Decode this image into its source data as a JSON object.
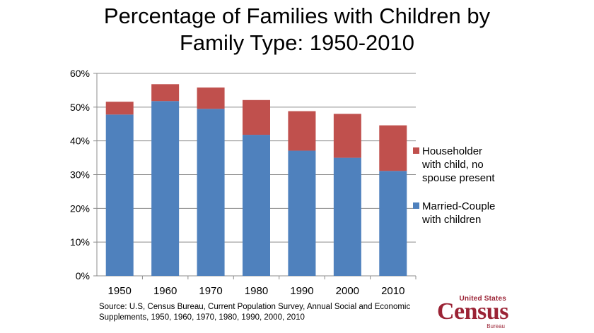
{
  "title_line1": "Percentage of Families with Children by",
  "title_line2": "Family Type: 1950-2010",
  "source_text": "Source: U.S, Census Bureau, Current Population  Survey, Annual Social and Economic Supplements, 1950, 1960, 1970, 1980, 1990, 2000, 2010",
  "logo": {
    "top_text": "United States",
    "main_text": "Census",
    "bottom_text": "Bureau"
  },
  "colors": {
    "married": "#4f81bd",
    "householder": "#c0504d",
    "logo": "#9b2335"
  },
  "chart_data": {
    "type": "bar",
    "stacked": true,
    "title": "Percentage of Families with Children by Family Type: 1950-2010",
    "categories": [
      "1950",
      "1960",
      "1970",
      "1980",
      "1990",
      "2000",
      "2010"
    ],
    "series": [
      {
        "name": "Married-Couple with children",
        "values": [
          47.8,
          51.8,
          49.5,
          41.8,
          37.1,
          35.0,
          31.1
        ],
        "color": "#4f81bd"
      },
      {
        "name": "Householder with child, no spouse present",
        "values": [
          3.8,
          5.0,
          6.3,
          10.3,
          11.7,
          13.0,
          13.5
        ],
        "color": "#c0504d"
      }
    ],
    "ylim": [
      0,
      60
    ],
    "yticks": [
      "0%",
      "10%",
      "20%",
      "30%",
      "40%",
      "50%",
      "60%"
    ],
    "grid": true,
    "legend": {
      "placement": "right",
      "entries": [
        {
          "lines": [
            "Householder",
            "with child, no",
            "spouse present"
          ],
          "color": "#c0504d"
        },
        {
          "lines": [
            "Married-Couple",
            "with children"
          ],
          "color": "#4f81bd"
        }
      ]
    }
  }
}
